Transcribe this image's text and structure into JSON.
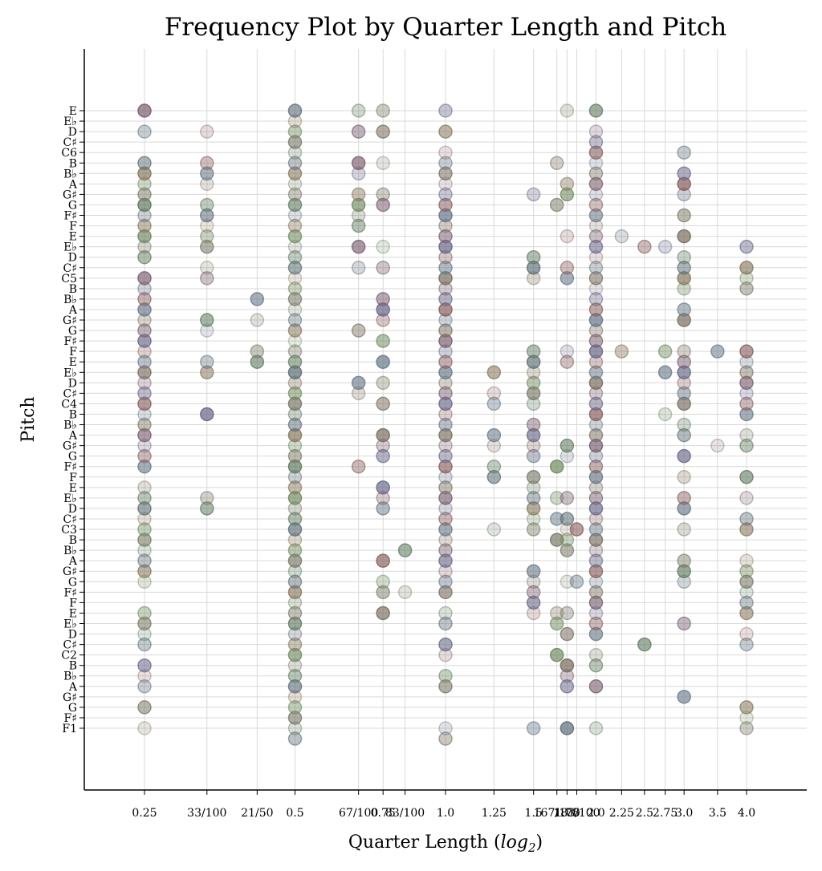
{
  "chart_data": {
    "type": "scatter",
    "title": "Frequency Plot by Quarter Length and Pitch",
    "xlabel": "Quarter Length (log2)",
    "xlabel_parts": [
      "Quarter Length (",
      "log",
      "2",
      ")"
    ],
    "ylabel": "Pitch",
    "x_scale": "log2",
    "grid": true,
    "x_ticks": [
      {
        "value": 0.25,
        "label": "0.25"
      },
      {
        "value": 0.3333,
        "label": "33/100"
      },
      {
        "value": 0.42,
        "label": "21/50"
      },
      {
        "value": 0.5,
        "label": "0.5"
      },
      {
        "value": 0.67,
        "label": "67/100"
      },
      {
        "value": 0.75,
        "label": "0.75"
      },
      {
        "value": 0.83,
        "label": "83/100"
      },
      {
        "value": 1.0,
        "label": "1.0"
      },
      {
        "value": 1.25,
        "label": "1.25"
      },
      {
        "value": 1.5,
        "label": "1.5"
      },
      {
        "value": 1.67,
        "label": "167/100"
      },
      {
        "value": 1.75,
        "label": "1.75"
      },
      {
        "value": 1.83,
        "label": "183/100"
      },
      {
        "value": 2.0,
        "label": "2.0"
      },
      {
        "value": 2.25,
        "label": "2.25"
      },
      {
        "value": 2.5,
        "label": "2.5"
      },
      {
        "value": 2.75,
        "label": "2.75"
      },
      {
        "value": 3.0,
        "label": "3.0"
      },
      {
        "value": 3.5,
        "label": "3.5"
      },
      {
        "value": 4.0,
        "label": "4.0"
      }
    ],
    "y_ticks": [
      "F1",
      "F♯",
      "G",
      "G♯",
      "A",
      "B♭",
      "B",
      "C2",
      "C♯",
      "D",
      "E♭",
      "E",
      "F",
      "F♯",
      "G",
      "G♯",
      "A",
      "B♭",
      "B",
      "C3",
      "C♯",
      "D",
      "E♭",
      "E",
      "F",
      "F♯",
      "G",
      "G♯",
      "A",
      "B♭",
      "B",
      "C4",
      "C♯",
      "D",
      "E♭",
      "E",
      "F",
      "F♯",
      "G",
      "G♯",
      "A",
      "B♭",
      "B",
      "C5",
      "C♯",
      "D",
      "E♭",
      "E",
      "F",
      "F♯",
      "G",
      "G♯",
      "A",
      "B♭",
      "B",
      "C6",
      "C♯",
      "D",
      "E♭",
      "E"
    ],
    "colors": [
      "#7a6e60",
      "#607a60",
      "#7a6070",
      "#60707a",
      "#6a6a8a",
      "#8a7a60",
      "#8a6060",
      "#708a60",
      "#6a7a8a",
      "#7a7a6a"
    ],
    "points": [
      [
        0.25,
        0
      ],
      [
        0.25,
        2
      ],
      [
        0.25,
        4
      ],
      [
        0.25,
        5
      ],
      [
        0.25,
        6
      ],
      [
        0.25,
        8
      ],
      [
        0.25,
        9
      ],
      [
        0.25,
        10
      ],
      [
        0.25,
        11
      ],
      [
        0.25,
        14
      ],
      [
        0.25,
        15
      ],
      [
        0.25,
        16
      ],
      [
        0.25,
        17
      ],
      [
        0.25,
        18
      ],
      [
        0.25,
        19
      ],
      [
        0.25,
        20
      ],
      [
        0.25,
        21
      ],
      [
        0.25,
        22
      ],
      [
        0.25,
        23
      ],
      [
        0.25,
        25
      ],
      [
        0.25,
        26
      ],
      [
        0.25,
        27
      ],
      [
        0.25,
        28
      ],
      [
        0.25,
        29
      ],
      [
        0.25,
        30
      ],
      [
        0.25,
        31
      ],
      [
        0.25,
        32
      ],
      [
        0.25,
        33
      ],
      [
        0.25,
        34
      ],
      [
        0.25,
        35
      ],
      [
        0.25,
        36
      ],
      [
        0.25,
        37
      ],
      [
        0.25,
        38
      ],
      [
        0.25,
        39
      ],
      [
        0.25,
        40
      ],
      [
        0.25,
        41
      ],
      [
        0.25,
        42
      ],
      [
        0.25,
        43
      ],
      [
        0.25,
        45
      ],
      [
        0.25,
        46
      ],
      [
        0.25,
        47
      ],
      [
        0.25,
        48
      ],
      [
        0.25,
        49
      ],
      [
        0.25,
        50
      ],
      [
        0.25,
        51
      ],
      [
        0.25,
        52
      ],
      [
        0.25,
        53
      ],
      [
        0.25,
        54
      ],
      [
        0.25,
        57
      ],
      [
        0.25,
        59
      ],
      [
        0.3333,
        21
      ],
      [
        0.3333,
        22
      ],
      [
        0.3333,
        30
      ],
      [
        0.3333,
        34
      ],
      [
        0.3333,
        35
      ],
      [
        0.3333,
        38
      ],
      [
        0.3333,
        39
      ],
      [
        0.3333,
        43
      ],
      [
        0.3333,
        44
      ],
      [
        0.3333,
        46
      ],
      [
        0.3333,
        47
      ],
      [
        0.3333,
        48
      ],
      [
        0.3333,
        49
      ],
      [
        0.3333,
        50
      ],
      [
        0.3333,
        52
      ],
      [
        0.3333,
        53
      ],
      [
        0.3333,
        54
      ],
      [
        0.3333,
        57
      ],
      [
        0.42,
        35
      ],
      [
        0.42,
        36
      ],
      [
        0.42,
        39
      ],
      [
        0.42,
        41
      ],
      [
        0.5,
        -1
      ],
      [
        0.5,
        0
      ],
      [
        0.5,
        1
      ],
      [
        0.5,
        2
      ],
      [
        0.5,
        3
      ],
      [
        0.5,
        4
      ],
      [
        0.5,
        5
      ],
      [
        0.5,
        6
      ],
      [
        0.5,
        7
      ],
      [
        0.5,
        8
      ],
      [
        0.5,
        9
      ],
      [
        0.5,
        10
      ],
      [
        0.5,
        11
      ],
      [
        0.5,
        12
      ],
      [
        0.5,
        13
      ],
      [
        0.5,
        14
      ],
      [
        0.5,
        15
      ],
      [
        0.5,
        16
      ],
      [
        0.5,
        17
      ],
      [
        0.5,
        18
      ],
      [
        0.5,
        19
      ],
      [
        0.5,
        20
      ],
      [
        0.5,
        21
      ],
      [
        0.5,
        22
      ],
      [
        0.5,
        23
      ],
      [
        0.5,
        24
      ],
      [
        0.5,
        25
      ],
      [
        0.5,
        26
      ],
      [
        0.5,
        27
      ],
      [
        0.5,
        28
      ],
      [
        0.5,
        29
      ],
      [
        0.5,
        30
      ],
      [
        0.5,
        31
      ],
      [
        0.5,
        32
      ],
      [
        0.5,
        33
      ],
      [
        0.5,
        34
      ],
      [
        0.5,
        35
      ],
      [
        0.5,
        36
      ],
      [
        0.5,
        37
      ],
      [
        0.5,
        38
      ],
      [
        0.5,
        39
      ],
      [
        0.5,
        40
      ],
      [
        0.5,
        41
      ],
      [
        0.5,
        42
      ],
      [
        0.5,
        43
      ],
      [
        0.5,
        44
      ],
      [
        0.5,
        45
      ],
      [
        0.5,
        46
      ],
      [
        0.5,
        47
      ],
      [
        0.5,
        48
      ],
      [
        0.5,
        49
      ],
      [
        0.5,
        50
      ],
      [
        0.5,
        51
      ],
      [
        0.5,
        52
      ],
      [
        0.5,
        53
      ],
      [
        0.5,
        54
      ],
      [
        0.5,
        55
      ],
      [
        0.5,
        56
      ],
      [
        0.5,
        57
      ],
      [
        0.5,
        58
      ],
      [
        0.5,
        59
      ],
      [
        0.67,
        25
      ],
      [
        0.67,
        32
      ],
      [
        0.67,
        33
      ],
      [
        0.67,
        38
      ],
      [
        0.67,
        44
      ],
      [
        0.67,
        46
      ],
      [
        0.67,
        48
      ],
      [
        0.67,
        49
      ],
      [
        0.67,
        50
      ],
      [
        0.67,
        51
      ],
      [
        0.67,
        53
      ],
      [
        0.67,
        54
      ],
      [
        0.67,
        57
      ],
      [
        0.67,
        59
      ],
      [
        0.75,
        11
      ],
      [
        0.75,
        13
      ],
      [
        0.75,
        14
      ],
      [
        0.75,
        16
      ],
      [
        0.75,
        21
      ],
      [
        0.75,
        22
      ],
      [
        0.75,
        23
      ],
      [
        0.75,
        26
      ],
      [
        0.75,
        27
      ],
      [
        0.75,
        28
      ],
      [
        0.75,
        31
      ],
      [
        0.75,
        33
      ],
      [
        0.75,
        35
      ],
      [
        0.75,
        37
      ],
      [
        0.75,
        39
      ],
      [
        0.75,
        40
      ],
      [
        0.75,
        41
      ],
      [
        0.75,
        44
      ],
      [
        0.75,
        46
      ],
      [
        0.75,
        50
      ],
      [
        0.75,
        51
      ],
      [
        0.75,
        54
      ],
      [
        0.75,
        57
      ],
      [
        0.75,
        59
      ],
      [
        0.83,
        13
      ],
      [
        0.83,
        17
      ],
      [
        1.0,
        -1
      ],
      [
        1.0,
        0
      ],
      [
        1.0,
        4
      ],
      [
        1.0,
        5
      ],
      [
        1.0,
        7
      ],
      [
        1.0,
        8
      ],
      [
        1.0,
        10
      ],
      [
        1.0,
        11
      ],
      [
        1.0,
        13
      ],
      [
        1.0,
        14
      ],
      [
        1.0,
        15
      ],
      [
        1.0,
        16
      ],
      [
        1.0,
        17
      ],
      [
        1.0,
        18
      ],
      [
        1.0,
        19
      ],
      [
        1.0,
        20
      ],
      [
        1.0,
        21
      ],
      [
        1.0,
        22
      ],
      [
        1.0,
        23
      ],
      [
        1.0,
        24
      ],
      [
        1.0,
        25
      ],
      [
        1.0,
        26
      ],
      [
        1.0,
        27
      ],
      [
        1.0,
        28
      ],
      [
        1.0,
        29
      ],
      [
        1.0,
        30
      ],
      [
        1.0,
        31
      ],
      [
        1.0,
        32
      ],
      [
        1.0,
        33
      ],
      [
        1.0,
        34
      ],
      [
        1.0,
        35
      ],
      [
        1.0,
        36
      ],
      [
        1.0,
        37
      ],
      [
        1.0,
        38
      ],
      [
        1.0,
        39
      ],
      [
        1.0,
        40
      ],
      [
        1.0,
        41
      ],
      [
        1.0,
        42
      ],
      [
        1.0,
        43
      ],
      [
        1.0,
        44
      ],
      [
        1.0,
        45
      ],
      [
        1.0,
        46
      ],
      [
        1.0,
        47
      ],
      [
        1.0,
        48
      ],
      [
        1.0,
        49
      ],
      [
        1.0,
        50
      ],
      [
        1.0,
        51
      ],
      [
        1.0,
        52
      ],
      [
        1.0,
        53
      ],
      [
        1.0,
        54
      ],
      [
        1.0,
        55
      ],
      [
        1.0,
        57
      ],
      [
        1.0,
        59
      ],
      [
        1.25,
        19
      ],
      [
        1.25,
        24
      ],
      [
        1.25,
        25
      ],
      [
        1.25,
        27
      ],
      [
        1.25,
        28
      ],
      [
        1.25,
        31
      ],
      [
        1.25,
        32
      ],
      [
        1.25,
        34
      ],
      [
        1.5,
        0
      ],
      [
        1.5,
        11
      ],
      [
        1.5,
        12
      ],
      [
        1.5,
        13
      ],
      [
        1.5,
        14
      ],
      [
        1.5,
        15
      ],
      [
        1.5,
        19
      ],
      [
        1.5,
        20
      ],
      [
        1.5,
        21
      ],
      [
        1.5,
        22
      ],
      [
        1.5,
        23
      ],
      [
        1.5,
        24
      ],
      [
        1.5,
        26
      ],
      [
        1.5,
        27
      ],
      [
        1.5,
        28
      ],
      [
        1.5,
        29
      ],
      [
        1.5,
        31
      ],
      [
        1.5,
        32
      ],
      [
        1.5,
        33
      ],
      [
        1.5,
        34
      ],
      [
        1.5,
        35
      ],
      [
        1.5,
        36
      ],
      [
        1.5,
        43
      ],
      [
        1.5,
        44
      ],
      [
        1.5,
        45
      ],
      [
        1.5,
        51
      ],
      [
        1.67,
        7
      ],
      [
        1.67,
        10
      ],
      [
        1.67,
        11
      ],
      [
        1.67,
        18
      ],
      [
        1.67,
        20
      ],
      [
        1.67,
        22
      ],
      [
        1.67,
        25
      ],
      [
        1.67,
        50
      ],
      [
        1.67,
        54
      ],
      [
        1.75,
        0
      ],
      [
        1.75,
        4
      ],
      [
        1.75,
        5
      ],
      [
        1.75,
        6
      ],
      [
        1.75,
        9
      ],
      [
        1.75,
        11
      ],
      [
        1.75,
        14
      ],
      [
        1.75,
        17
      ],
      [
        1.75,
        18
      ],
      [
        1.75,
        19
      ],
      [
        1.75,
        20
      ],
      [
        1.75,
        22
      ],
      [
        1.75,
        26
      ],
      [
        1.75,
        27
      ],
      [
        1.75,
        35
      ],
      [
        1.75,
        36
      ],
      [
        1.75,
        43
      ],
      [
        1.75,
        44
      ],
      [
        1.75,
        47
      ],
      [
        1.75,
        51
      ],
      [
        1.75,
        52
      ],
      [
        1.75,
        59
      ],
      [
        1.83,
        19
      ],
      [
        1.83,
        14
      ],
      [
        2.0,
        0
      ],
      [
        2.0,
        4
      ],
      [
        2.0,
        6
      ],
      [
        2.0,
        7
      ],
      [
        2.0,
        9
      ],
      [
        2.0,
        10
      ],
      [
        2.0,
        11
      ],
      [
        2.0,
        12
      ],
      [
        2.0,
        13
      ],
      [
        2.0,
        14
      ],
      [
        2.0,
        15
      ],
      [
        2.0,
        16
      ],
      [
        2.0,
        17
      ],
      [
        2.0,
        18
      ],
      [
        2.0,
        19
      ],
      [
        2.0,
        20
      ],
      [
        2.0,
        21
      ],
      [
        2.0,
        22
      ],
      [
        2.0,
        23
      ],
      [
        2.0,
        24
      ],
      [
        2.0,
        25
      ],
      [
        2.0,
        26
      ],
      [
        2.0,
        27
      ],
      [
        2.0,
        28
      ],
      [
        2.0,
        29
      ],
      [
        2.0,
        30
      ],
      [
        2.0,
        31
      ],
      [
        2.0,
        32
      ],
      [
        2.0,
        33
      ],
      [
        2.0,
        34
      ],
      [
        2.0,
        35
      ],
      [
        2.0,
        36
      ],
      [
        2.0,
        37
      ],
      [
        2.0,
        38
      ],
      [
        2.0,
        39
      ],
      [
        2.0,
        40
      ],
      [
        2.0,
        41
      ],
      [
        2.0,
        42
      ],
      [
        2.0,
        43
      ],
      [
        2.0,
        44
      ],
      [
        2.0,
        45
      ],
      [
        2.0,
        46
      ],
      [
        2.0,
        47
      ],
      [
        2.0,
        48
      ],
      [
        2.0,
        49
      ],
      [
        2.0,
        50
      ],
      [
        2.0,
        51
      ],
      [
        2.0,
        52
      ],
      [
        2.0,
        53
      ],
      [
        2.0,
        54
      ],
      [
        2.0,
        55
      ],
      [
        2.0,
        56
      ],
      [
        2.0,
        57
      ],
      [
        2.0,
        59
      ],
      [
        2.25,
        36
      ],
      [
        2.25,
        47
      ],
      [
        2.5,
        8
      ],
      [
        2.5,
        46
      ],
      [
        2.75,
        30
      ],
      [
        2.75,
        34
      ],
      [
        2.75,
        36
      ],
      [
        2.75,
        46
      ],
      [
        3.0,
        3
      ],
      [
        3.0,
        10
      ],
      [
        3.0,
        14
      ],
      [
        3.0,
        15
      ],
      [
        3.0,
        16
      ],
      [
        3.0,
        19
      ],
      [
        3.0,
        21
      ],
      [
        3.0,
        22
      ],
      [
        3.0,
        24
      ],
      [
        3.0,
        26
      ],
      [
        3.0,
        28
      ],
      [
        3.0,
        29
      ],
      [
        3.0,
        31
      ],
      [
        3.0,
        32
      ],
      [
        3.0,
        33
      ],
      [
        3.0,
        34
      ],
      [
        3.0,
        35
      ],
      [
        3.0,
        36
      ],
      [
        3.0,
        39
      ],
      [
        3.0,
        40
      ],
      [
        3.0,
        42
      ],
      [
        3.0,
        43
      ],
      [
        3.0,
        44
      ],
      [
        3.0,
        45
      ],
      [
        3.0,
        47
      ],
      [
        3.0,
        49
      ],
      [
        3.0,
        51
      ],
      [
        3.0,
        52
      ],
      [
        3.0,
        53
      ],
      [
        3.0,
        55
      ],
      [
        3.5,
        27
      ],
      [
        3.5,
        36
      ],
      [
        4.0,
        0
      ],
      [
        4.0,
        1
      ],
      [
        4.0,
        2
      ],
      [
        4.0,
        8
      ],
      [
        4.0,
        9
      ],
      [
        4.0,
        11
      ],
      [
        4.0,
        12
      ],
      [
        4.0,
        13
      ],
      [
        4.0,
        14
      ],
      [
        4.0,
        15
      ],
      [
        4.0,
        16
      ],
      [
        4.0,
        19
      ],
      [
        4.0,
        20
      ],
      [
        4.0,
        22
      ],
      [
        4.0,
        24
      ],
      [
        4.0,
        27
      ],
      [
        4.0,
        28
      ],
      [
        4.0,
        30
      ],
      [
        4.0,
        31
      ],
      [
        4.0,
        32
      ],
      [
        4.0,
        33
      ],
      [
        4.0,
        34
      ],
      [
        4.0,
        35
      ],
      [
        4.0,
        36
      ],
      [
        4.0,
        42
      ],
      [
        4.0,
        43
      ],
      [
        4.0,
        44
      ],
      [
        4.0,
        46
      ]
    ]
  }
}
